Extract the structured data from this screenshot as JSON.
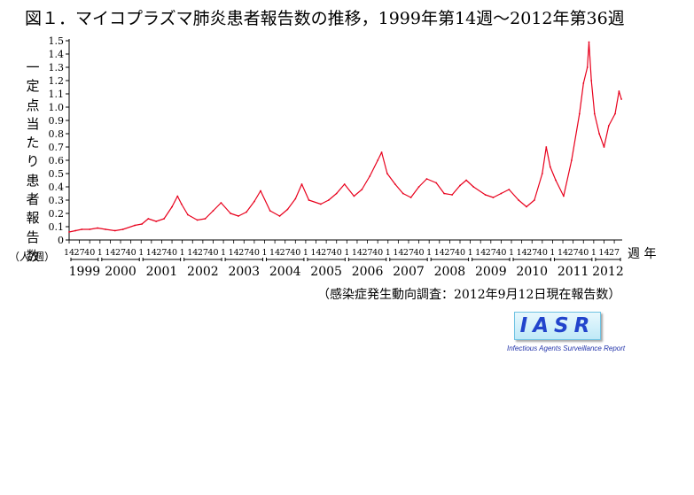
{
  "title": "図１．マイコプラズマ肺炎患者報告数の推移，1999年第14週～2012年第36週",
  "ylabel_chars": [
    "一",
    "定",
    "点",
    "当",
    "た",
    "り",
    "患",
    "者",
    "報",
    "告",
    "数"
  ],
  "y_unit": "（人/週）",
  "x_unit": "週 年",
  "source_note": "（感染症発生動向調査：2012年9月12日現在報告数）",
  "logo": {
    "text": "IASR",
    "subtitle": "Infectious Agents Surveillance Report"
  },
  "chart_data": {
    "type": "line",
    "title": "図１．マイコプラズマ肺炎患者報告数の推移，1999年第14週～2012年第36週",
    "xlabel": "週 年",
    "ylabel": "一定点当たり患者報告数 （人/週）",
    "ylim": [
      0,
      1.5
    ],
    "yticks": [
      "0",
      "0.1",
      "0.2",
      "0.3",
      "0.4",
      "0.5",
      "0.6",
      "0.7",
      "0.8",
      "0.9",
      "1.0",
      "1.1",
      "1.2",
      "1.3",
      "1.4",
      "1.5"
    ],
    "color": "#e8001c",
    "years": [
      {
        "year": "1999",
        "week_ticks": [
          "14",
          "27",
          "40"
        ]
      },
      {
        "year": "2000",
        "week_ticks": [
          "1",
          "14",
          "27",
          "40"
        ]
      },
      {
        "year": "2001",
        "week_ticks": [
          "1",
          "14",
          "27",
          "40"
        ]
      },
      {
        "year": "2002",
        "week_ticks": [
          "1",
          "14",
          "27",
          "40"
        ]
      },
      {
        "year": "2003",
        "week_ticks": [
          "1",
          "14",
          "27",
          "40"
        ]
      },
      {
        "year": "2004",
        "week_ticks": [
          "1",
          "14",
          "27",
          "40"
        ]
      },
      {
        "year": "2005",
        "week_ticks": [
          "1",
          "14",
          "27",
          "40"
        ]
      },
      {
        "year": "2006",
        "week_ticks": [
          "1",
          "14",
          "27",
          "40"
        ]
      },
      {
        "year": "2007",
        "week_ticks": [
          "1",
          "14",
          "27",
          "40"
        ]
      },
      {
        "year": "2008",
        "week_ticks": [
          "1",
          "14",
          "27",
          "40"
        ]
      },
      {
        "year": "2009",
        "week_ticks": [
          "1",
          "14",
          "27",
          "40"
        ]
      },
      {
        "year": "2010",
        "week_ticks": [
          "1",
          "14",
          "27",
          "40"
        ]
      },
      {
        "year": "2011",
        "week_ticks": [
          "1",
          "14",
          "27",
          "40"
        ]
      },
      {
        "year": "2012",
        "week_ticks": [
          "1",
          "14",
          "27"
        ]
      }
    ],
    "series": [
      {
        "points": [
          [
            "1999-14",
            0.06
          ],
          [
            "1999-22",
            0.07
          ],
          [
            "1999-30",
            0.08
          ],
          [
            "1999-40",
            0.08
          ],
          [
            "1999-50",
            0.09
          ],
          [
            "2000-08",
            0.08
          ],
          [
            "2000-20",
            0.07
          ],
          [
            "2000-30",
            0.08
          ],
          [
            "2000-45",
            0.11
          ],
          [
            "2001-02",
            0.12
          ],
          [
            "2001-10",
            0.16
          ],
          [
            "2001-20",
            0.14
          ],
          [
            "2001-30",
            0.16
          ],
          [
            "2001-40",
            0.25
          ],
          [
            "2001-47",
            0.33
          ],
          [
            "2001-52",
            0.27
          ],
          [
            "2002-08",
            0.19
          ],
          [
            "2002-20",
            0.15
          ],
          [
            "2002-30",
            0.16
          ],
          [
            "2002-40",
            0.22
          ],
          [
            "2002-50",
            0.28
          ],
          [
            "2003-10",
            0.2
          ],
          [
            "2003-20",
            0.18
          ],
          [
            "2003-30",
            0.21
          ],
          [
            "2003-40",
            0.29
          ],
          [
            "2003-48",
            0.37
          ],
          [
            "2004-08",
            0.22
          ],
          [
            "2004-20",
            0.18
          ],
          [
            "2004-30",
            0.23
          ],
          [
            "2004-40",
            0.31
          ],
          [
            "2004-48",
            0.42
          ],
          [
            "2005-05",
            0.3
          ],
          [
            "2005-20",
            0.27
          ],
          [
            "2005-30",
            0.3
          ],
          [
            "2005-40",
            0.35
          ],
          [
            "2005-50",
            0.42
          ],
          [
            "2006-10",
            0.33
          ],
          [
            "2006-20",
            0.38
          ],
          [
            "2006-30",
            0.48
          ],
          [
            "2006-40",
            0.6
          ],
          [
            "2006-45",
            0.66
          ],
          [
            "2006-52",
            0.5
          ],
          [
            "2007-10",
            0.42
          ],
          [
            "2007-20",
            0.35
          ],
          [
            "2007-30",
            0.32
          ],
          [
            "2007-40",
            0.4
          ],
          [
            "2007-50",
            0.46
          ],
          [
            "2008-10",
            0.43
          ],
          [
            "2008-20",
            0.35
          ],
          [
            "2008-30",
            0.34
          ],
          [
            "2008-40",
            0.41
          ],
          [
            "2008-48",
            0.45
          ],
          [
            "2009-05",
            0.4
          ],
          [
            "2009-20",
            0.34
          ],
          [
            "2009-30",
            0.32
          ],
          [
            "2009-40",
            0.35
          ],
          [
            "2009-50",
            0.38
          ],
          [
            "2010-10",
            0.3
          ],
          [
            "2010-20",
            0.25
          ],
          [
            "2010-30",
            0.3
          ],
          [
            "2010-40",
            0.5
          ],
          [
            "2010-45",
            0.7
          ],
          [
            "2010-50",
            0.55
          ],
          [
            "2011-05",
            0.45
          ],
          [
            "2011-15",
            0.33
          ],
          [
            "2011-25",
            0.6
          ],
          [
            "2011-35",
            0.95
          ],
          [
            "2011-40",
            1.18
          ],
          [
            "2011-45",
            1.3
          ],
          [
            "2011-47",
            1.49
          ],
          [
            "2011-50",
            1.2
          ],
          [
            "2012-02",
            0.95
          ],
          [
            "2012-08",
            0.8
          ],
          [
            "2012-14",
            0.7
          ],
          [
            "2012-20",
            0.86
          ],
          [
            "2012-28",
            0.95
          ],
          [
            "2012-33",
            1.12
          ],
          [
            "2012-36",
            1.06
          ]
        ]
      }
    ]
  }
}
